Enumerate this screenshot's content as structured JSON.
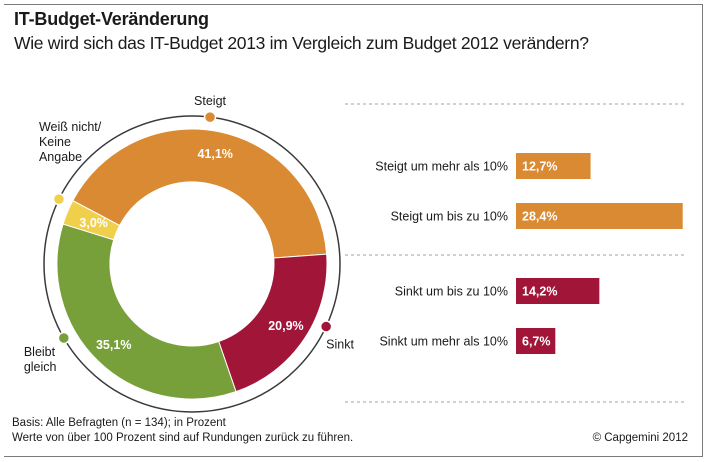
{
  "title": "IT-Budget-Veränderung",
  "subtitle": "Wie wird sich das IT-Budget 2013 im Vergleich zum Budget 2012 verändern?",
  "colors": {
    "steigt": "#d98a32",
    "sinkt": "#a01538",
    "bleibt": "#78a03a",
    "weiss": "#f0d04a",
    "ring": "#3a3a3a",
    "dash": "#a0a0a0"
  },
  "chart_data": [
    {
      "type": "pie",
      "title": "",
      "slices": [
        {
          "key": "steigt",
          "label_lines": [
            "Steigt"
          ],
          "value": 41.1,
          "value_label": "41,1%"
        },
        {
          "key": "sinkt",
          "label_lines": [
            "Sinkt"
          ],
          "value": 20.9,
          "value_label": "20,9%"
        },
        {
          "key": "bleibt",
          "label_lines": [
            "Bleibt",
            "gleich"
          ],
          "value": 35.1,
          "value_label": "35,1%"
        },
        {
          "key": "weiss",
          "label_lines": [
            "Weiß nicht/",
            "Keine",
            "Angabe"
          ],
          "value": 3.0,
          "value_label": "3,0%"
        }
      ]
    },
    {
      "type": "bar",
      "orientation": "horizontal",
      "title": "",
      "bars": [
        {
          "key": "steigt",
          "label": "Steigt um mehr als 10%",
          "value": 12.7,
          "value_label": "12,7%"
        },
        {
          "key": "steigt",
          "label": "Steigt um bis zu 10%",
          "value": 28.4,
          "value_label": "28,4%"
        },
        {
          "key": "sinkt",
          "label": "Sinkt um bis zu 10%",
          "value": 14.2,
          "value_label": "14,2%"
        },
        {
          "key": "sinkt",
          "label": "Sinkt um mehr als 10%",
          "value": 6.7,
          "value_label": "6,7%"
        }
      ]
    }
  ],
  "footnote": {
    "line1": "Basis: Alle Befragten (n = 134); in Prozent",
    "line2": "Werte von über 100 Prozent sind auf Rundungen zurück zu führen."
  },
  "copyright": "© Capgemini 2012"
}
